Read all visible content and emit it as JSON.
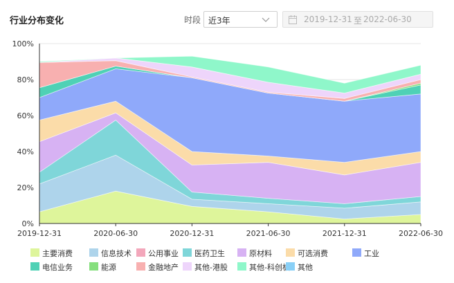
{
  "header": {
    "title": "行业分布变化",
    "period_label": "时段",
    "period_value": "近3年",
    "date_start": "2019-12-31",
    "date_separator": "至",
    "date_end": "2022-06-30"
  },
  "icons": {
    "period_dropdown": "chevron-down-icon",
    "date_picker": "calendar-icon"
  },
  "chart_data": {
    "type": "area",
    "stacked": true,
    "x": [
      "2019-12-31",
      "2020-06-30",
      "2020-12-31",
      "2021-06-30",
      "2021-12-31",
      "2022-06-30"
    ],
    "ylim": [
      0,
      100
    ],
    "yticks": [
      "0%",
      "20%",
      "40%",
      "60%",
      "80%",
      "100%"
    ],
    "grid": true,
    "legend_position": "bottom",
    "series": [
      {
        "name": "主要消费",
        "color": "#def59b",
        "values": [
          6.5,
          18,
          9.5,
          6.5,
          2.5,
          5
        ]
      },
      {
        "name": "信息技术",
        "color": "#aed4eb",
        "values": [
          15.5,
          20,
          4,
          4.5,
          6,
          7
        ]
      },
      {
        "name": "公用事业",
        "color": "#f3a7bb",
        "values": [
          0,
          0,
          0,
          0,
          0,
          0
        ]
      },
      {
        "name": "医药卫生",
        "color": "#7fd6d9",
        "values": [
          6.5,
          19.5,
          4,
          3,
          2.5,
          3
        ]
      },
      {
        "name": "原材料",
        "color": "#d7b2f3",
        "values": [
          17,
          4,
          15,
          20,
          16,
          19
        ]
      },
      {
        "name": "可选消费",
        "color": "#fbdca9",
        "values": [
          12,
          6.5,
          7.5,
          3.5,
          7,
          6
        ]
      },
      {
        "name": "工业",
        "color": "#8fa9fa",
        "values": [
          12.5,
          18,
          41,
          35,
          34,
          32
        ]
      },
      {
        "name": "电信业务",
        "color": "#4fd1b5",
        "values": [
          5.5,
          1.5,
          0,
          0,
          0,
          5
        ]
      },
      {
        "name": "能源",
        "color": "#86df7e",
        "values": [
          0,
          0,
          0,
          0,
          0,
          1
        ]
      },
      {
        "name": "金融地产",
        "color": "#f8b0b0",
        "values": [
          14,
          3,
          0.5,
          0.5,
          1.5,
          2
        ]
      },
      {
        "name": "其他-港股",
        "color": "#eed5fb",
        "values": [
          0,
          1.5,
          5.5,
          5.5,
          3,
          3
        ]
      },
      {
        "name": "其他-科创板",
        "color": "#8ff7ca",
        "values": [
          0.5,
          0,
          6,
          8.5,
          5.5,
          5
        ]
      },
      {
        "name": "其他",
        "color": "#89d0f7",
        "values": [
          0,
          0,
          0,
          0,
          0,
          0
        ]
      }
    ]
  }
}
